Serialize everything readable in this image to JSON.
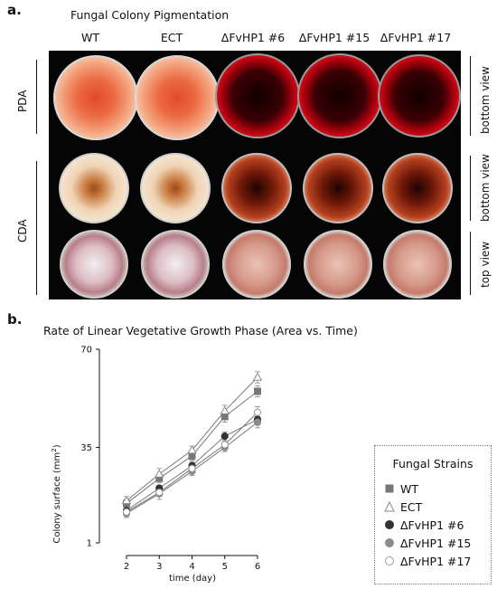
{
  "panel_a": {
    "letter": "a.",
    "title": "Fungal Colony Pigmentation",
    "columns": [
      "WT",
      "ECT",
      "ΔFvHP1 #6",
      "ΔFvHP1 #15",
      "ΔFvHP1 #17"
    ],
    "media": {
      "pda": "PDA",
      "cda": "CDA"
    },
    "views": {
      "pda": "bottom view",
      "cda_bottom": "bottom view",
      "cda_top": "top view"
    }
  },
  "panel_b": {
    "letter": "b.",
    "title": "Rate of Linear Vegetative Growth Phase (Area vs. Time)",
    "legend_title": "Fungal Strains"
  },
  "chart_data": {
    "type": "line",
    "title": "Rate of Linear Vegetative Growth Phase (Area vs. Time)",
    "xlabel": "time (day)",
    "ylabel": "Colony surface (mm²)",
    "ylabel_prefix": "Colony surface (mm",
    "ylabel_sup": "2",
    "ylabel_suffix": ")",
    "x": [
      2,
      3,
      4,
      5,
      6
    ],
    "xticks": [
      "2",
      "3",
      "4",
      "5",
      "6"
    ],
    "yticks": [
      "1",
      "35",
      "70"
    ],
    "xlim": [
      2,
      6
    ],
    "ylim": [
      1,
      70
    ],
    "grid": false,
    "legend_position": "right",
    "series": [
      {
        "name": "WT",
        "marker": "square",
        "color": "#777777",
        "fill": "#777777",
        "values": [
          15,
          24,
          32,
          46,
          55
        ],
        "err": [
          1.5,
          1.5,
          1.5,
          2,
          2
        ]
      },
      {
        "name": "ECT",
        "marker": "triangle",
        "color": "#8a8a8a",
        "fill": "#ffffff",
        "values": [
          16,
          25.5,
          34,
          48,
          60
        ],
        "err": [
          1.5,
          2,
          1.5,
          2,
          2
        ]
      },
      {
        "name": "ΔFvHP1 #6",
        "marker": "circle",
        "color": "#333333",
        "fill": "#333333",
        "values": [
          12.5,
          20.5,
          28.5,
          39,
          45
        ],
        "err": [
          1,
          1,
          1.5,
          1.5,
          2
        ]
      },
      {
        "name": "ΔFvHP1 #15",
        "marker": "circle",
        "color": "#8a8a8a",
        "fill": "#8a8a8a",
        "values": [
          11.5,
          18.5,
          26.5,
          35,
          44
        ],
        "err": [
          1.5,
          2,
          1.5,
          1.5,
          2
        ]
      },
      {
        "name": "ΔFvHP1 #17",
        "marker": "circle",
        "color": "#999999",
        "fill": "#ffffff",
        "values": [
          12,
          19,
          27.5,
          36,
          47.5
        ],
        "err": [
          1.5,
          1.5,
          2,
          1.5,
          2
        ]
      }
    ]
  }
}
